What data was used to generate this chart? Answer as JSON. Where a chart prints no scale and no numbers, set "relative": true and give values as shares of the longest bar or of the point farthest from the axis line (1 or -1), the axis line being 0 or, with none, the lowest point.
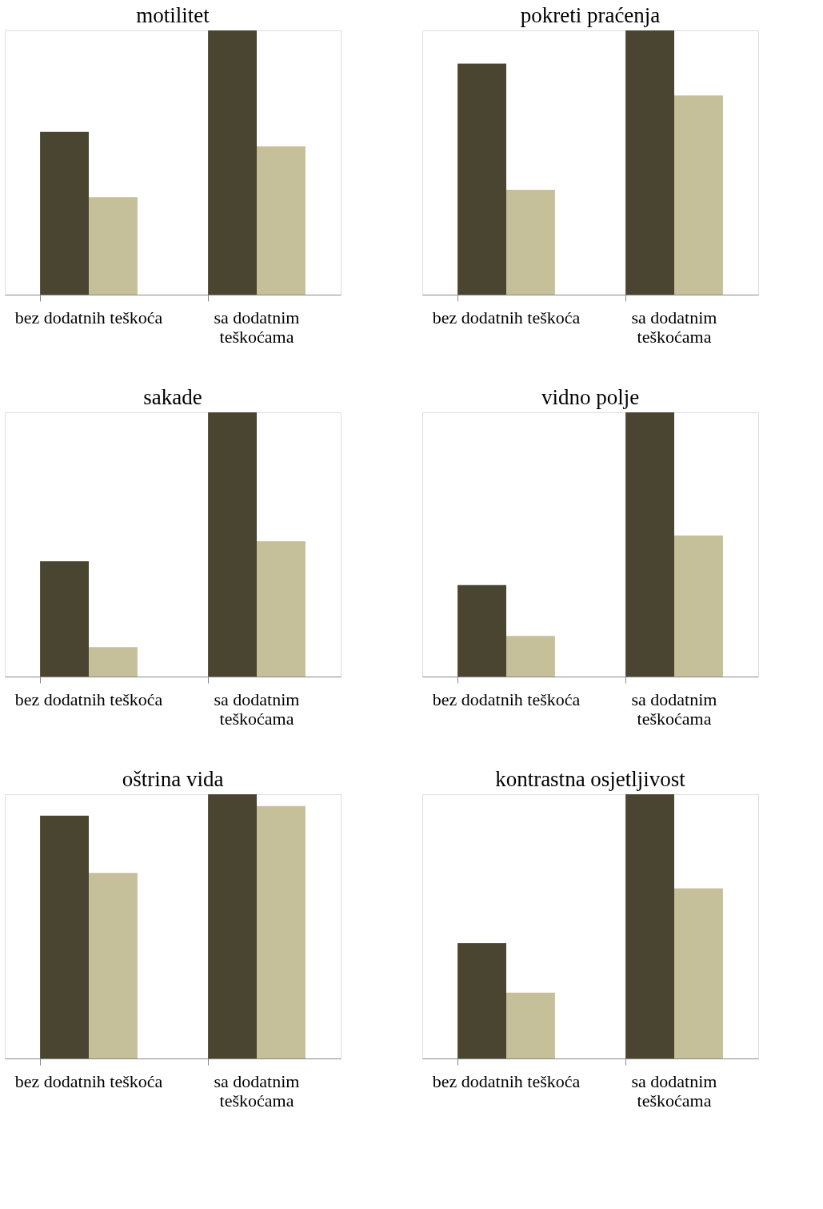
{
  "chart_data": [
    {
      "type": "bar",
      "title": "motilitet",
      "relative": true,
      "categories": [
        "bez dodatnih teškoća",
        "sa dodatnim teškoćama"
      ],
      "series": [
        {
          "color": "#4a4530",
          "values": [
            0.616,
            1
          ]
        },
        {
          "color": "#c5bf9a",
          "values": [
            0.369,
            0.561
          ]
        }
      ]
    },
    {
      "type": "bar",
      "title": "pokreti praćenja",
      "relative": true,
      "categories": [
        "bez dodatnih teškoća",
        "sa dodatnim teškoćama"
      ],
      "series": [
        {
          "color": "#4a4530",
          "values": [
            0.874,
            1
          ]
        },
        {
          "color": "#c5bf9a",
          "values": [
            0.397,
            0.754
          ]
        }
      ]
    },
    {
      "type": "bar",
      "title": "sakade",
      "relative": true,
      "categories": [
        "bez dodatnih teškoća",
        "sa dodatnim teškoćama"
      ],
      "series": [
        {
          "color": "#4a4530",
          "values": [
            0.436,
            1
          ]
        },
        {
          "color": "#c5bf9a",
          "values": [
            0.111,
            0.512
          ]
        }
      ]
    },
    {
      "type": "bar",
      "title": "vidno polje",
      "relative": true,
      "categories": [
        "bez dodatnih teškoća",
        "sa dodatnim teškoćama"
      ],
      "series": [
        {
          "color": "#4a4530",
          "values": [
            0.346,
            1
          ]
        },
        {
          "color": "#c5bf9a",
          "values": [
            0.154,
            0.534
          ]
        }
      ]
    },
    {
      "type": "bar",
      "title": "oštrina vida",
      "relative": true,
      "categories": [
        "bez dodatnih teškoća",
        "sa dodatnim teškoćama"
      ],
      "series": [
        {
          "color": "#4a4530",
          "values": [
            0.919,
            1
          ]
        },
        {
          "color": "#c5bf9a",
          "values": [
            0.702,
            0.955
          ]
        }
      ]
    },
    {
      "type": "bar",
      "title": "kontrastna osjetljivost",
      "relative": true,
      "categories": [
        "bez dodatnih teškoća",
        "sa dodatnim teškoćama"
      ],
      "series": [
        {
          "color": "#4a4530",
          "values": [
            0.436,
            1
          ]
        },
        {
          "color": "#c5bf9a",
          "values": [
            0.249,
            0.644
          ]
        }
      ]
    }
  ]
}
